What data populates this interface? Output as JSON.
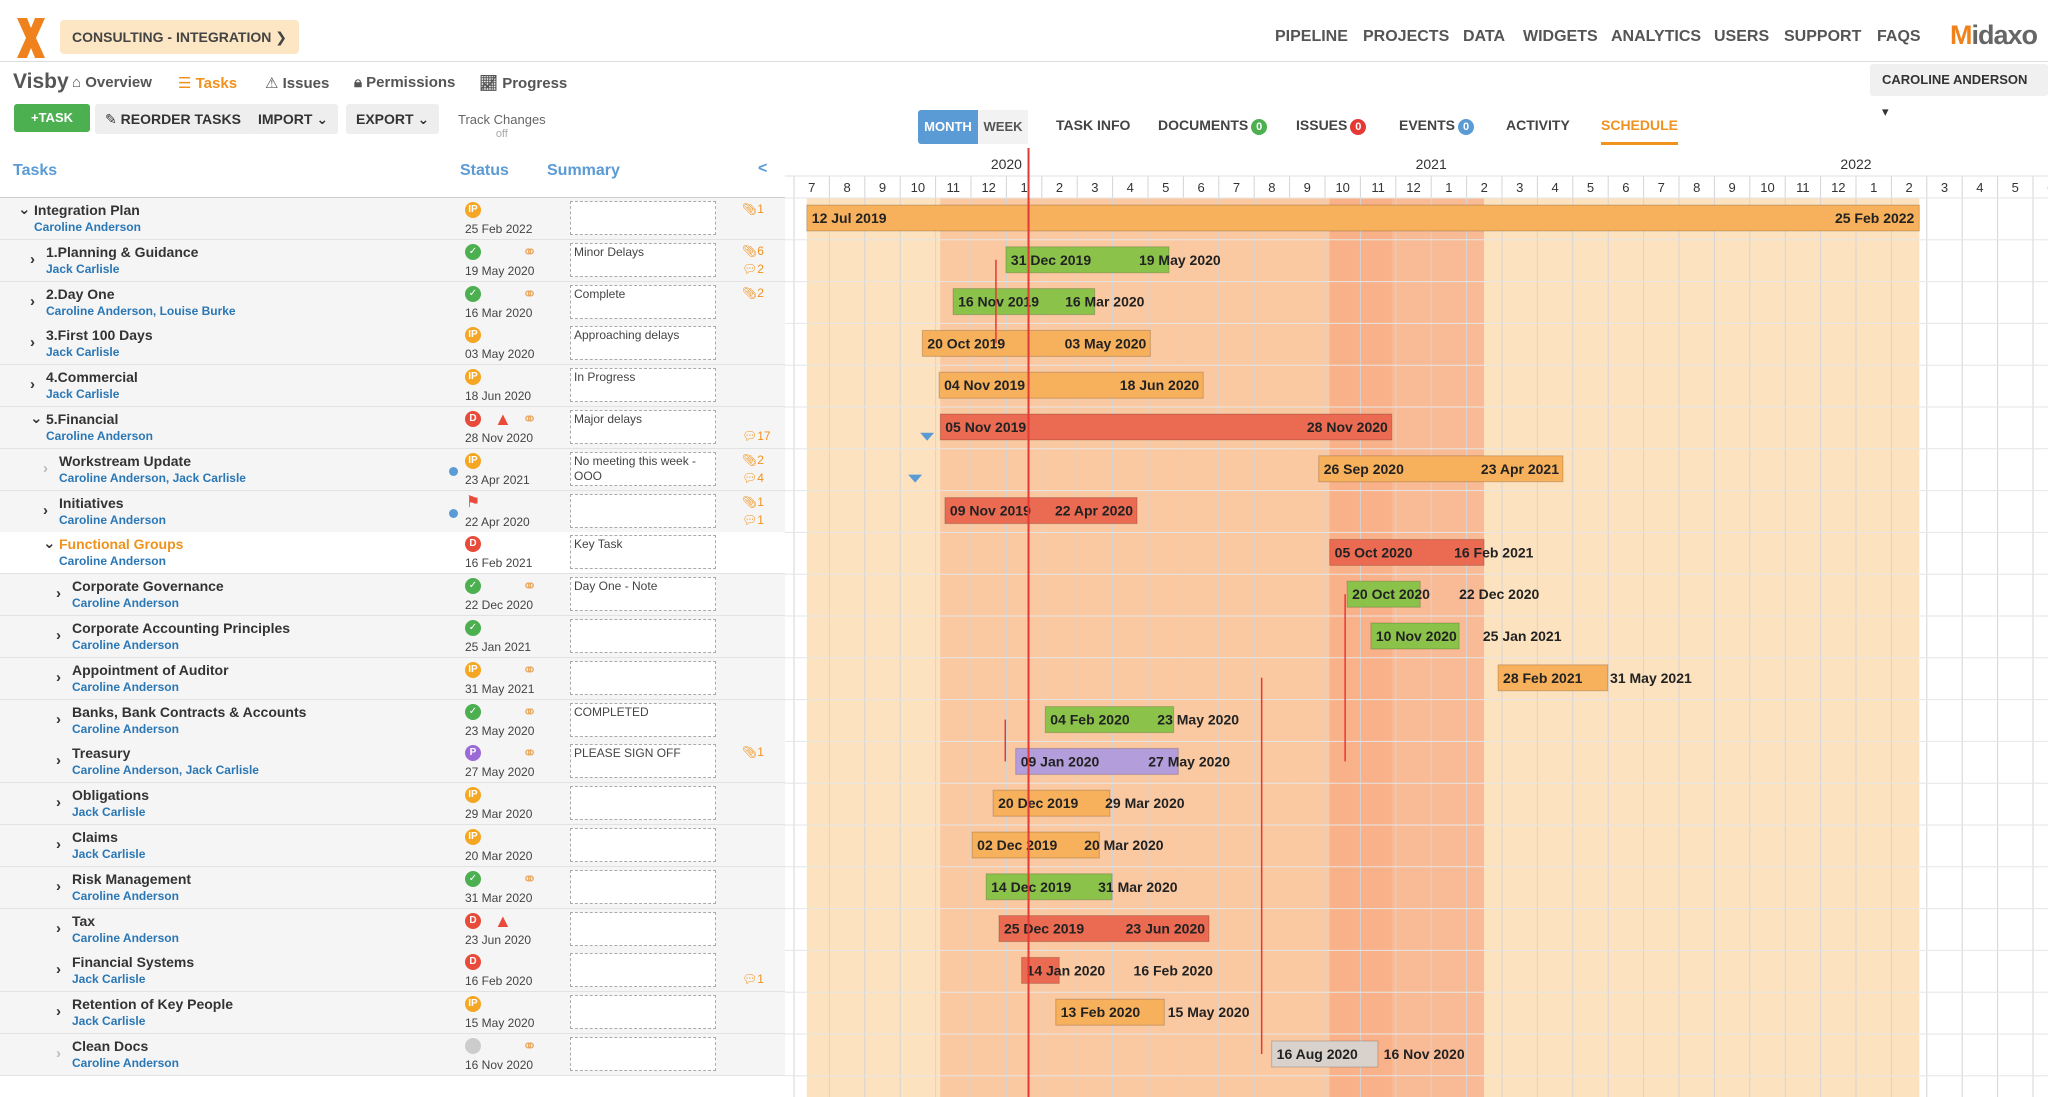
{
  "header": {
    "crumb": "CONSULTING - INTEGRATION",
    "nav": [
      "PIPELINE",
      "PROJECTS",
      "DATA",
      "WIDGETS",
      "ANALYTICS",
      "USERS",
      "SUPPORT",
      "FAQS"
    ],
    "brand": "Midaxo"
  },
  "subnav": {
    "project": "Visby",
    "tabs": [
      "Overview",
      "Tasks",
      "Issues",
      "Permissions",
      "Progress"
    ],
    "user": "CAROLINE ANDERSON"
  },
  "toolbar": {
    "add": "TASK",
    "reorder": "REORDER TASKS",
    "import": "IMPORT",
    "export": "EXPORT",
    "track": "Track Changes",
    "track_state": "off",
    "month": "MONTH",
    "week": "WEEK"
  },
  "tabs": {
    "task_info": "TASK INFO",
    "documents": "DOCUMENTS",
    "documents_count": "0",
    "issues": "ISSUES",
    "issues_count": "0",
    "events": "EVENTS",
    "events_count": "0",
    "activity": "ACTIVITY",
    "schedule": "SCHEDULE"
  },
  "grid_headers": {
    "tasks": "Tasks",
    "status": "Status",
    "summary": "Summary",
    "collapse": "<"
  },
  "gantt": {
    "months": [
      "7",
      "8",
      "9",
      "10",
      "11",
      "12",
      "1",
      "2",
      "3",
      "4",
      "5",
      "6",
      "7",
      "8",
      "9",
      "10",
      "11",
      "12",
      "1",
      "2",
      "3",
      "4",
      "5",
      "6",
      "7",
      "8",
      "9",
      "10",
      "11",
      "12",
      "1",
      "2",
      "3",
      "4",
      "5",
      "6"
    ],
    "years": [
      "2020",
      "2021",
      "2022"
    ]
  },
  "rows": [
    {
      "name": "Integration Plan",
      "owner": "Caroline Anderson",
      "status": "IP",
      "date": "25 Feb 2022",
      "summary": "",
      "att": "1",
      "com": "",
      "start": "12 Jul 2019",
      "end": "25 Feb 2022"
    },
    {
      "name": "1.Planning & Guidance",
      "owner": "Jack Carlisle",
      "status": "OK",
      "date": "19 May 2020",
      "summary": "Minor Delays",
      "att": "6",
      "com": "2",
      "start": "31 Dec 2019",
      "end": "19 May 2020"
    },
    {
      "name": "2.Day One",
      "owner": "Caroline Anderson, Louise Burke",
      "status": "OK",
      "date": "16 Mar 2020",
      "summary": "Complete",
      "att": "2",
      "com": "",
      "start": "16 Nov 2019",
      "end": "16 Mar 2020"
    },
    {
      "name": "3.First 100 Days",
      "owner": "Jack Carlisle",
      "status": "IP",
      "date": "03 May 2020",
      "summary": "Approaching delays",
      "att": "",
      "com": "",
      "start": "20 Oct 2019",
      "end": "03 May 2020"
    },
    {
      "name": "4.Commercial",
      "owner": "Jack Carlisle",
      "status": "IP",
      "date": "18 Jun 2020",
      "summary": "In Progress",
      "att": "",
      "com": "",
      "start": "04 Nov 2019",
      "end": "18 Jun 2020"
    },
    {
      "name": "5.Financial",
      "owner": "Caroline Anderson",
      "status": "D",
      "date": "28 Nov 2020",
      "summary": "Major delays",
      "att": "",
      "com": "17",
      "start": "05 Nov 2019",
      "end": "28 Nov 2020"
    },
    {
      "name": "Workstream Update",
      "owner": "Caroline Anderson, Jack Carlisle",
      "status": "IP",
      "date": "23 Apr 2021",
      "summary": "No meeting this week - OOO",
      "att": "2",
      "com": "4",
      "start": "26 Sep 2020",
      "end": "23 Apr 2021"
    },
    {
      "name": "Initiatives",
      "owner": "Caroline Anderson",
      "status": "FLAG",
      "date": "22 Apr 2020",
      "summary": "",
      "att": "1",
      "com": "1",
      "start": "09 Nov 2019",
      "end": "22 Apr 2020"
    },
    {
      "name": "Functional Groups",
      "owner": "Caroline Anderson",
      "status": "D",
      "date": "16 Feb 2021",
      "summary": "Key Task",
      "att": "",
      "com": "",
      "start": "05 Oct 2020",
      "end": "16 Feb 2021"
    },
    {
      "name": "Corporate Governance",
      "owner": "Caroline Anderson",
      "status": "OK",
      "date": "22 Dec 2020",
      "summary": "Day One - Note",
      "att": "",
      "com": "",
      "start": "20 Oct 2020",
      "end": "22 Dec 2020"
    },
    {
      "name": "Corporate Accounting Principles",
      "owner": "Caroline Anderson",
      "status": "OK",
      "date": "25 Jan 2021",
      "summary": "",
      "att": "",
      "com": "",
      "start": "10 Nov 2020",
      "end": "25 Jan 2021"
    },
    {
      "name": "Appointment of Auditor",
      "owner": "Caroline Anderson",
      "status": "IP",
      "date": "31 May 2021",
      "summary": "",
      "att": "",
      "com": "",
      "start": "28 Feb 2021",
      "end": "31 May 2021"
    },
    {
      "name": "Banks, Bank Contracts & Accounts",
      "owner": "Caroline Anderson",
      "status": "OK",
      "date": "23 May 2020",
      "summary": "COMPLETED",
      "att": "",
      "com": "",
      "start": "04 Feb 2020",
      "end": "23 May 2020"
    },
    {
      "name": "Treasury",
      "owner": "Caroline Anderson, Jack Carlisle",
      "status": "P",
      "date": "27 May 2020",
      "summary": "PLEASE SIGN OFF",
      "att": "1",
      "com": "",
      "start": "09 Jan 2020",
      "end": "27 May 2020"
    },
    {
      "name": "Obligations",
      "owner": "Jack Carlisle",
      "status": "IP",
      "date": "29 Mar 2020",
      "summary": "",
      "att": "",
      "com": "",
      "start": "20 Dec 2019",
      "end": "29 Mar 2020"
    },
    {
      "name": "Claims",
      "owner": "Jack Carlisle",
      "status": "IP",
      "date": "20 Mar 2020",
      "summary": "",
      "att": "",
      "com": "",
      "start": "02 Dec 2019",
      "end": "20 Mar 2020"
    },
    {
      "name": "Risk Management",
      "owner": "Caroline Anderson",
      "status": "OK",
      "date": "31 Mar 2020",
      "summary": "",
      "att": "",
      "com": "",
      "start": "14 Dec 2019",
      "end": "31 Mar 2020"
    },
    {
      "name": "Tax",
      "owner": "Caroline Anderson",
      "status": "D",
      "date": "23 Jun 2020",
      "summary": "",
      "att": "",
      "com": "",
      "start": "25 Dec 2019",
      "end": "23 Jun 2020"
    },
    {
      "name": "Financial Systems",
      "owner": "Jack Carlisle",
      "status": "D",
      "date": "16 Feb 2020",
      "summary": "",
      "att": "",
      "com": "1",
      "start": "14 Jan 2020",
      "end": "16 Feb 2020"
    },
    {
      "name": "Retention of Key People",
      "owner": "Jack Carlisle",
      "status": "IP",
      "date": "15 May 2020",
      "summary": "",
      "att": "",
      "com": "",
      "start": "13 Feb 2020",
      "end": "15 May 2020"
    },
    {
      "name": "Clean Docs",
      "owner": "Caroline Anderson",
      "status": "N",
      "date": "16 Nov 2020",
      "summary": "",
      "att": "",
      "com": "",
      "start": "16 Aug 2020",
      "end": "16 Nov 2020"
    }
  ],
  "colors": {
    "orange": "#f7b05b",
    "green": "#8bc34a",
    "red": "#ea6a52",
    "purple": "#b39ddb",
    "gray": "#d9d2cc",
    "accent": "#f0921e",
    "blue": "#5b9bd5"
  }
}
